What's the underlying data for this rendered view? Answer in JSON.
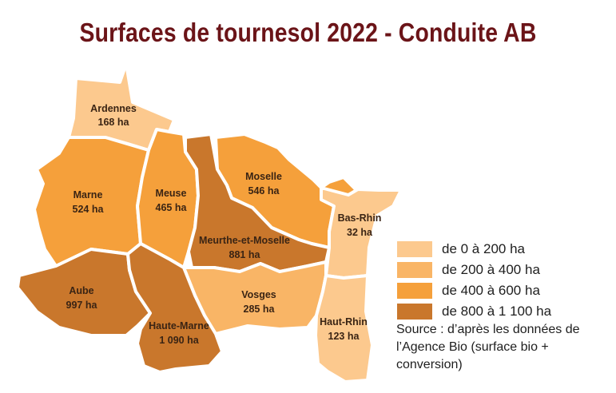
{
  "title": "Surfaces de tournesol 2022 - Conduite AB",
  "colors": {
    "class_0_200": "#fcc98e",
    "class_200_400": "#f9b566",
    "class_400_600": "#f5a03b",
    "class_800_1100": "#c9772c"
  },
  "departments": [
    {
      "name": "Ardennes",
      "value": "168 ha",
      "class": "class_0_200"
    },
    {
      "name": "Marne",
      "value": "524 ha",
      "class": "class_400_600"
    },
    {
      "name": "Meuse",
      "value": "465 ha",
      "class": "class_400_600"
    },
    {
      "name": "Moselle",
      "value": "546 ha",
      "class": "class_400_600"
    },
    {
      "name": "Bas-Rhin",
      "value": "32 ha",
      "class": "class_0_200"
    },
    {
      "name": "Meurthe-et-Moselle",
      "value": "881 ha",
      "class": "class_800_1100"
    },
    {
      "name": "Aube",
      "value": "997 ha",
      "class": "class_800_1100"
    },
    {
      "name": "Vosges",
      "value": "285 ha",
      "class": "class_200_400"
    },
    {
      "name": "Haute-Marne",
      "value": "1 090 ha",
      "class": "class_800_1100"
    },
    {
      "name": "Haut-Rhin",
      "value": "123 ha",
      "class": "class_0_200"
    }
  ],
  "legend": [
    {
      "label": "de 0 à 200 ha",
      "class": "class_0_200"
    },
    {
      "label": "de 200 à 400 ha",
      "class": "class_200_400"
    },
    {
      "label": "de 400 à 600 ha",
      "class": "class_400_600"
    },
    {
      "label": "de 800 à 1 100 ha",
      "class": "class_800_1100"
    }
  ],
  "source": "Source : d’après les données de l’Agence Bio (surface bio + conversion)"
}
